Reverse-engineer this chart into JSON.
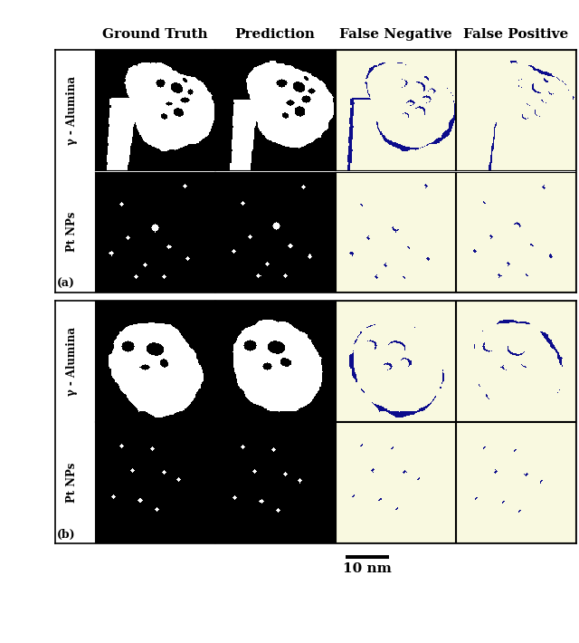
{
  "title_cols": [
    "Ground Truth",
    "Prediction",
    "False Negative",
    "False Positive"
  ],
  "row_labels_a": [
    "γ - Alumina",
    "Pt NPs"
  ],
  "row_labels_b": [
    "γ - Alumina",
    "Pt NPs"
  ],
  "panel_label_a": "(a)",
  "panel_label_b": "(b)",
  "scalebar_text": "10 nm",
  "light_yellow": [
    0.98,
    0.98,
    0.88
  ],
  "blue_color": [
    0.05,
    0.05,
    0.55
  ],
  "header_fontsize": 11,
  "label_fontsize": 8.5,
  "panel_label_fontsize": 9
}
